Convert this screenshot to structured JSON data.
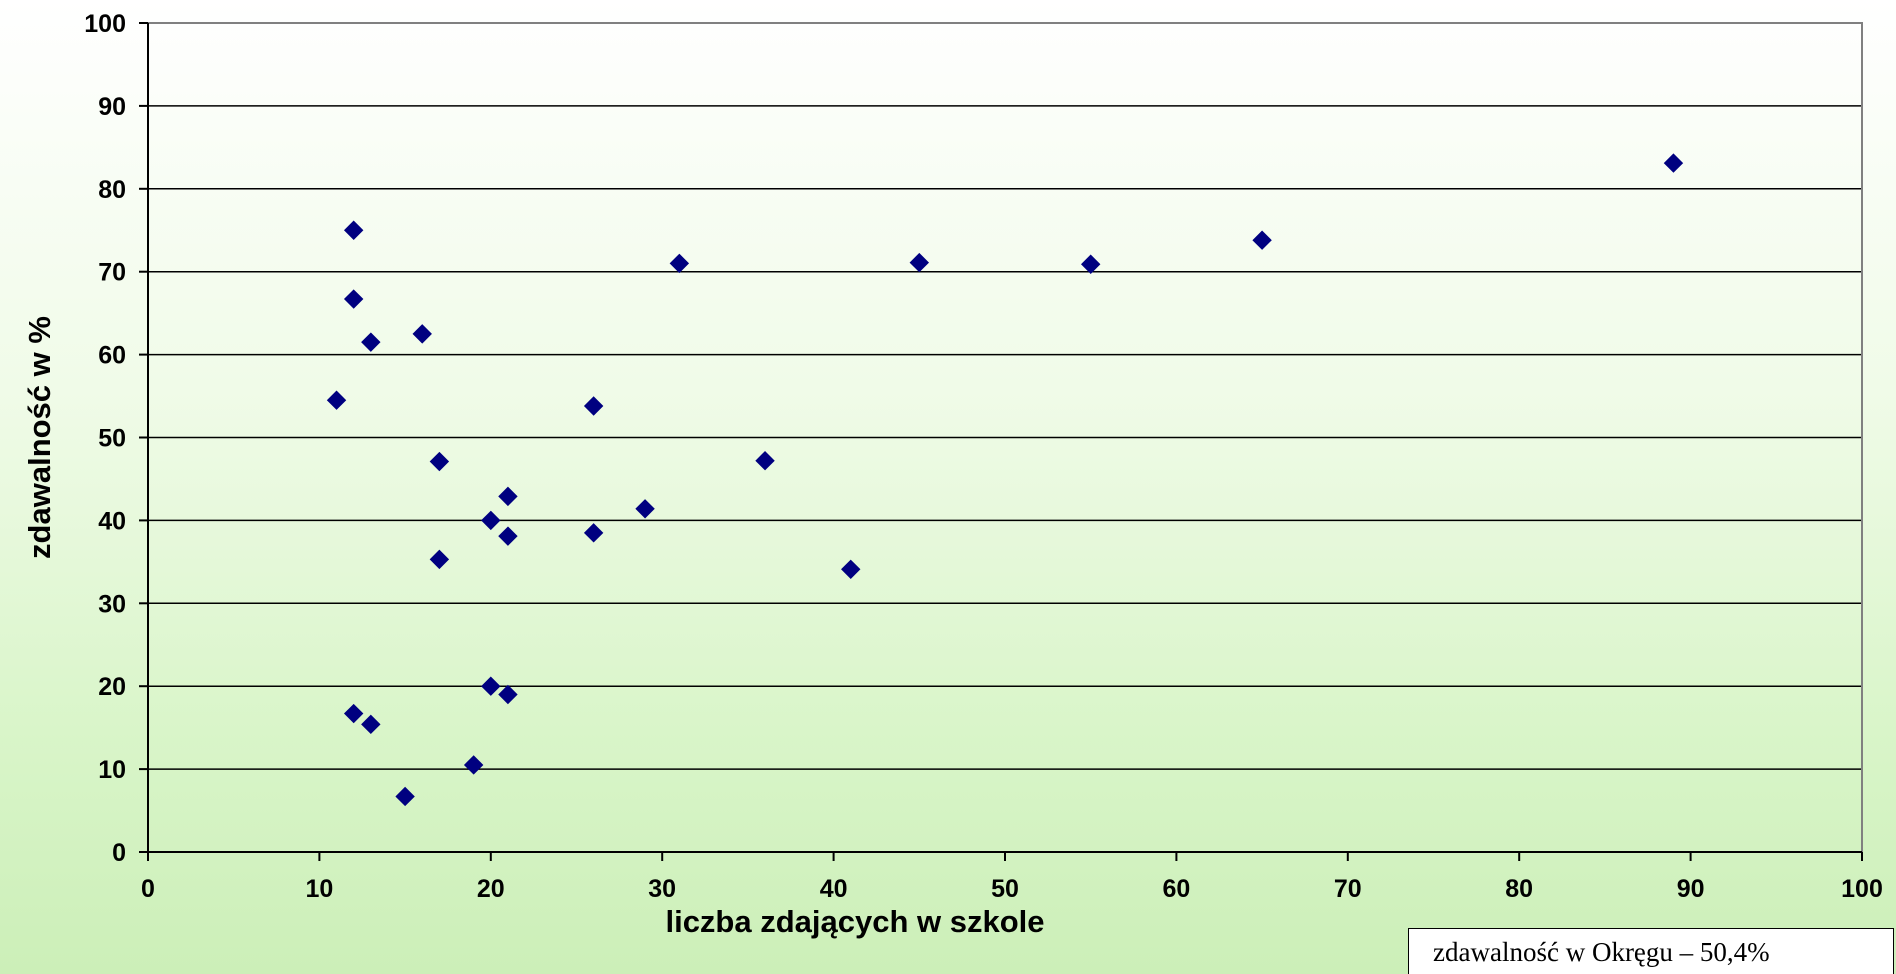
{
  "chart_data": {
    "type": "scatter",
    "title": "",
    "xlabel": "liczba zdających w szkole",
    "ylabel": "zdawalność w %",
    "xlim": [
      0,
      100
    ],
    "ylim": [
      0,
      100
    ],
    "x_ticks": [
      0,
      10,
      20,
      30,
      40,
      50,
      60,
      70,
      80,
      90,
      100
    ],
    "y_ticks": [
      0,
      10,
      20,
      30,
      40,
      50,
      60,
      70,
      80,
      90,
      100
    ],
    "grid": "horizontal",
    "legend": "none",
    "marker": "diamond",
    "marker_color": "#000080",
    "points": [
      {
        "x": 11,
        "y": 54.5
      },
      {
        "x": 12,
        "y": 75
      },
      {
        "x": 12,
        "y": 66.7
      },
      {
        "x": 12,
        "y": 16.7
      },
      {
        "x": 13,
        "y": 61.5
      },
      {
        "x": 13,
        "y": 15.4
      },
      {
        "x": 15,
        "y": 6.7
      },
      {
        "x": 16,
        "y": 62.5
      },
      {
        "x": 17,
        "y": 47.1
      },
      {
        "x": 17,
        "y": 35.3
      },
      {
        "x": 19,
        "y": 10.5
      },
      {
        "x": 20,
        "y": 40
      },
      {
        "x": 20,
        "y": 20
      },
      {
        "x": 21,
        "y": 42.9
      },
      {
        "x": 21,
        "y": 38.1
      },
      {
        "x": 21,
        "y": 19
      },
      {
        "x": 26,
        "y": 53.8
      },
      {
        "x": 26,
        "y": 38.5
      },
      {
        "x": 29,
        "y": 41.4
      },
      {
        "x": 31,
        "y": 71
      },
      {
        "x": 36,
        "y": 47.2
      },
      {
        "x": 41,
        "y": 34.1
      },
      {
        "x": 45,
        "y": 71.1
      },
      {
        "x": 55,
        "y": 70.9
      },
      {
        "x": 65,
        "y": 73.8
      },
      {
        "x": 89,
        "y": 83.1
      }
    ],
    "annotation": "zdawalność w Okręgu – 50,4%"
  }
}
